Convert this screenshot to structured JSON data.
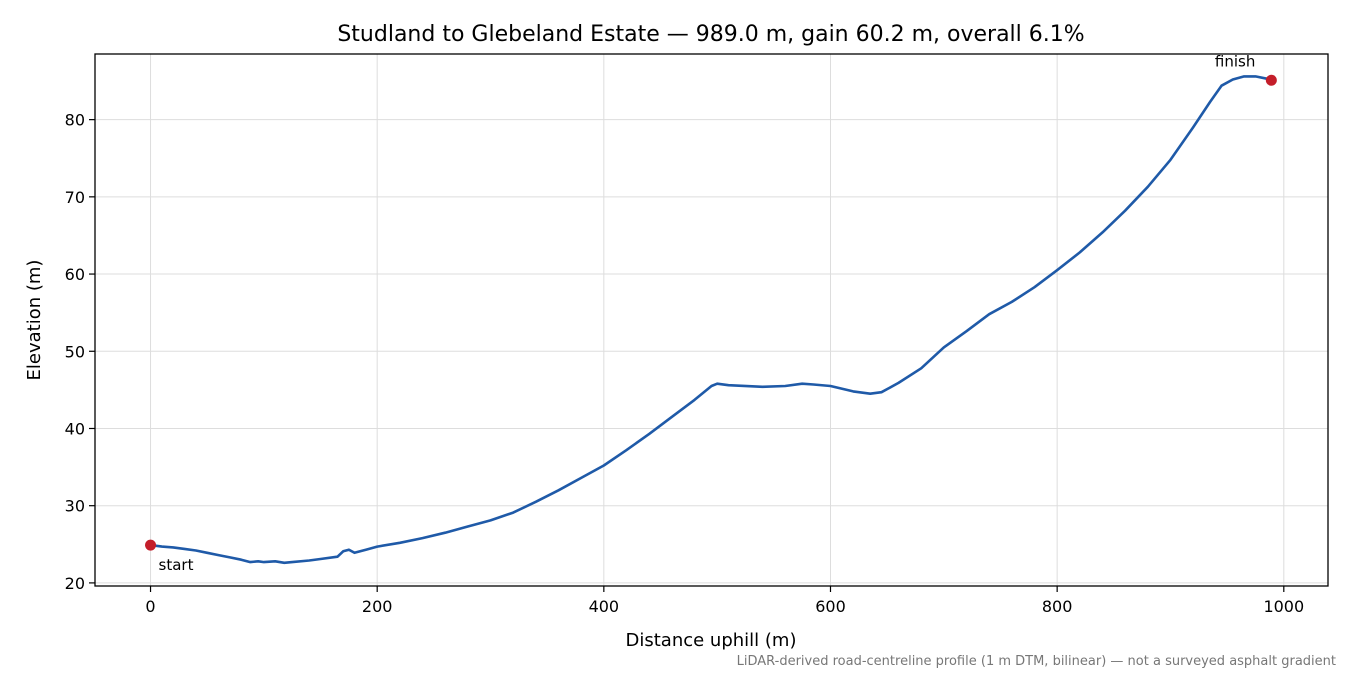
{
  "chart_data": {
    "type": "line",
    "title": "Studland to Glebeland Estate — 989.0 m, gain 60.2 m, overall 6.1%",
    "xlabel": "Distance uphill (m)",
    "ylabel": "Elevation (m)",
    "xlim": [
      -49,
      1039
    ],
    "ylim": [
      19.6,
      88.5
    ],
    "xticks": [
      0,
      200,
      400,
      600,
      800,
      1000
    ],
    "yticks": [
      20,
      30,
      40,
      50,
      60,
      70,
      80
    ],
    "grid": true,
    "series": [
      {
        "color": "#1f5aa8",
        "points": [
          [
            0,
            24.9
          ],
          [
            10,
            24.7
          ],
          [
            20,
            24.6
          ],
          [
            30,
            24.4
          ],
          [
            40,
            24.2
          ],
          [
            50,
            23.9
          ],
          [
            60,
            23.6
          ],
          [
            70,
            23.3
          ],
          [
            80,
            23.0
          ],
          [
            88,
            22.7
          ],
          [
            95,
            22.8
          ],
          [
            100,
            22.7
          ],
          [
            110,
            22.8
          ],
          [
            118,
            22.6
          ],
          [
            125,
            22.7
          ],
          [
            140,
            22.9
          ],
          [
            150,
            23.1
          ],
          [
            165,
            23.4
          ],
          [
            170,
            24.1
          ],
          [
            175,
            24.3
          ],
          [
            180,
            23.9
          ],
          [
            190,
            24.3
          ],
          [
            200,
            24.7
          ],
          [
            220,
            25.2
          ],
          [
            240,
            25.8
          ],
          [
            260,
            26.5
          ],
          [
            280,
            27.3
          ],
          [
            300,
            28.1
          ],
          [
            320,
            29.1
          ],
          [
            340,
            30.5
          ],
          [
            360,
            32.0
          ],
          [
            380,
            33.6
          ],
          [
            400,
            35.2
          ],
          [
            420,
            37.2
          ],
          [
            440,
            39.3
          ],
          [
            460,
            41.5
          ],
          [
            480,
            43.7
          ],
          [
            495,
            45.5
          ],
          [
            500,
            45.8
          ],
          [
            510,
            45.6
          ],
          [
            540,
            45.4
          ],
          [
            560,
            45.5
          ],
          [
            575,
            45.8
          ],
          [
            585,
            45.7
          ],
          [
            600,
            45.5
          ],
          [
            620,
            44.8
          ],
          [
            635,
            44.5
          ],
          [
            645,
            44.7
          ],
          [
            660,
            45.9
          ],
          [
            680,
            47.8
          ],
          [
            700,
            50.5
          ],
          [
            720,
            52.6
          ],
          [
            740,
            54.8
          ],
          [
            760,
            56.4
          ],
          [
            780,
            58.3
          ],
          [
            800,
            60.5
          ],
          [
            820,
            62.8
          ],
          [
            840,
            65.4
          ],
          [
            860,
            68.2
          ],
          [
            880,
            71.3
          ],
          [
            900,
            74.8
          ],
          [
            920,
            79.0
          ],
          [
            935,
            82.3
          ],
          [
            945,
            84.4
          ],
          [
            955,
            85.2
          ],
          [
            965,
            85.6
          ],
          [
            975,
            85.6
          ],
          [
            985,
            85.3
          ],
          [
            989,
            85.1
          ]
        ]
      }
    ],
    "markers": [
      {
        "label": "start",
        "x": 0,
        "y": 24.9,
        "color": "#c41e2a"
      },
      {
        "label": "finish",
        "x": 989,
        "y": 85.1,
        "color": "#c41e2a"
      }
    ],
    "footnote": "LiDAR-derived road-centreline profile (1 m DTM, bilinear) — not a surveyed asphalt gradient"
  }
}
